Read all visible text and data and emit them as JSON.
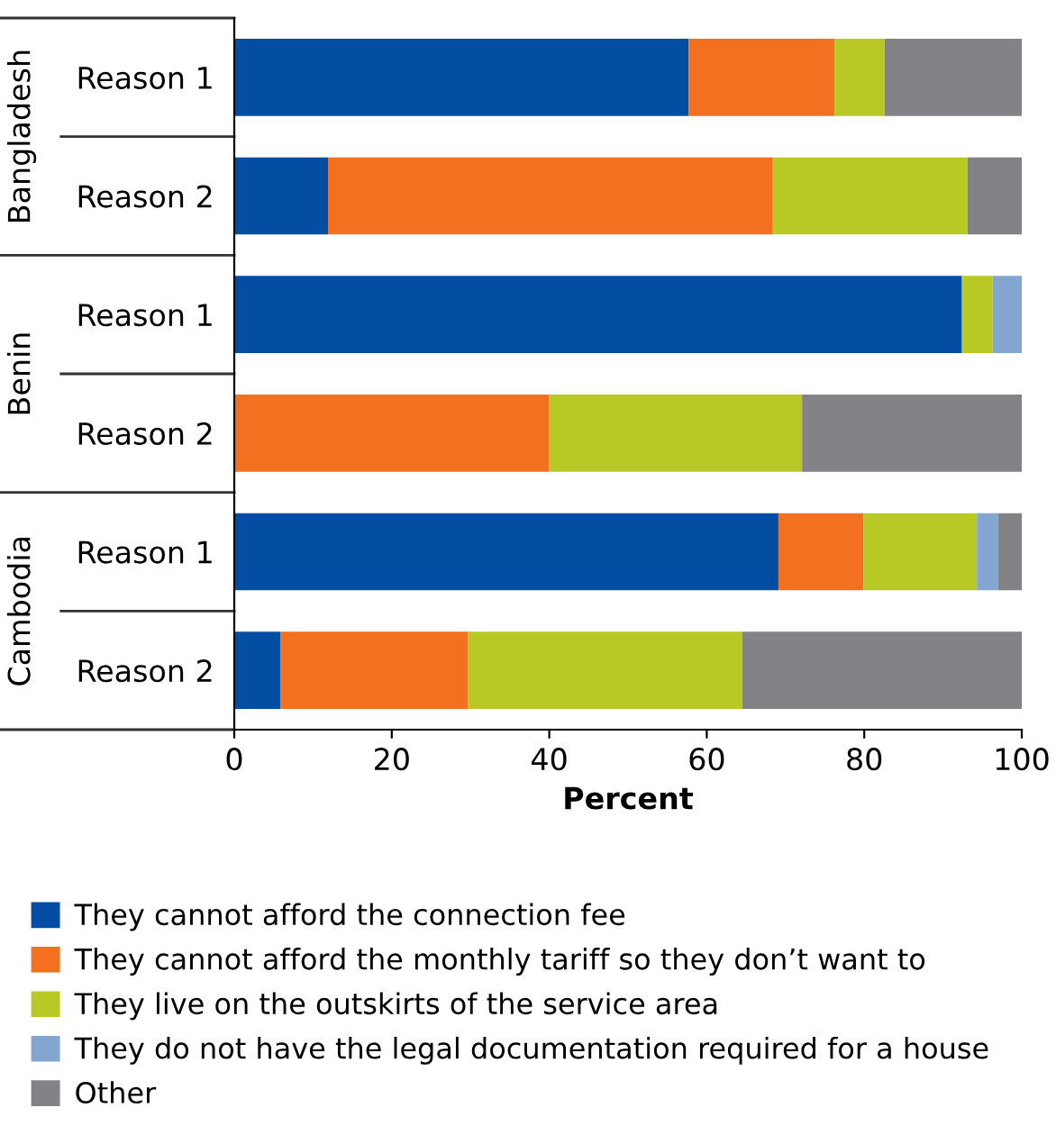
{
  "chart_data": {
    "type": "bar",
    "orientation": "horizontal",
    "stacked": true,
    "categories": [
      "Reason 1",
      "Reason 2",
      "Reason 1",
      "Reason 2",
      "Reason 1",
      "Reason 2"
    ],
    "series": [
      {
        "name": "They cannot afford the connection fee",
        "color": "#034ea2",
        "values": [
          57.7,
          11.9,
          92.4,
          null,
          69.1,
          5.9
        ]
      },
      {
        "name": "They cannot afford the monthly tariff so they don’t want to",
        "color": "#f37021",
        "values": [
          18.5,
          56.5,
          null,
          40.0,
          10.8,
          23.8
        ]
      },
      {
        "name": "They live on the outskirts of the service area",
        "color": "#b8c825",
        "values": [
          6.4,
          24.7,
          3.9,
          32.1,
          14.4,
          34.8
        ]
      },
      {
        "name": "They do not have the legal documentation required for a house",
        "color": "#82a6d0",
        "values": [
          null,
          null,
          3.7,
          null,
          2.7,
          null
        ]
      },
      {
        "name": "Other",
        "color": "#838387",
        "values": [
          17.4,
          6.9,
          null,
          27.9,
          3.0,
          35.5
        ]
      }
    ],
    "annotations": [
      "Bangladesh",
      "Benin",
      "Cambodia"
    ],
    "xlabel": "Percent",
    "xlim": [
      0,
      100
    ],
    "xticks": [
      0,
      20,
      40,
      60,
      80,
      100
    ],
    "grid": false,
    "legend": "bottom"
  }
}
